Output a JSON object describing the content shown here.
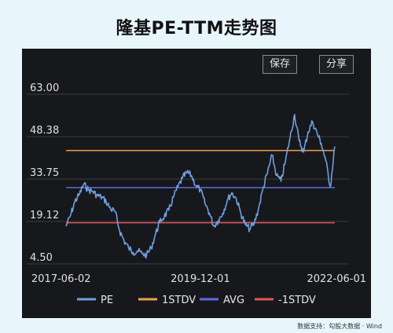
{
  "title": "隆基PE-TTM走势图",
  "buttons": {
    "save": "保存",
    "share": "分享"
  },
  "footer": "数据支持：勾股大数据 · Wind",
  "colors": {
    "pe": "#6f9fe0",
    "stdv_plus": "#e8a24a",
    "avg": "#5b6bdf",
    "stdv_minus": "#e0555a",
    "background": "#17181c",
    "grid": "#3a3b40"
  },
  "chart_data": {
    "type": "line",
    "x_axis": {
      "ticks": [
        "2017-06-02",
        "2019-12-01",
        "2022-06-01"
      ],
      "start": "2017-06-02",
      "end": "2022-06-01"
    },
    "y_axis": {
      "ticks": [
        63.0,
        48.38,
        33.75,
        19.12,
        4.5
      ],
      "tick_labels": [
        "63.00",
        "48.38",
        "33.75",
        "19.12",
        "4.50"
      ],
      "ylim": [
        4.5,
        63.0
      ]
    },
    "grid": true,
    "legend_placement": "bottom",
    "reference_lines": [
      {
        "name": "1STDV",
        "value": 43.6
      },
      {
        "name": "AVG",
        "value": 30.8
      },
      {
        "name": "-1STDV",
        "value": 18.7
      }
    ],
    "series": [
      {
        "name": "PE",
        "points": [
          [
            "2017-06-02",
            17.5
          ],
          [
            "2017-07-01",
            21.0
          ],
          [
            "2017-08-01",
            26.0
          ],
          [
            "2017-09-01",
            28.5
          ],
          [
            "2017-10-01",
            32.0
          ],
          [
            "2017-11-01",
            30.0
          ],
          [
            "2017-12-01",
            29.5
          ],
          [
            "2018-01-01",
            28.0
          ],
          [
            "2018-02-01",
            27.5
          ],
          [
            "2018-03-01",
            26.0
          ],
          [
            "2018-04-01",
            23.5
          ],
          [
            "2018-05-01",
            22.5
          ],
          [
            "2018-06-01",
            16.0
          ],
          [
            "2018-07-01",
            12.5
          ],
          [
            "2018-08-01",
            10.0
          ],
          [
            "2018-09-01",
            8.5
          ],
          [
            "2018-10-01",
            9.0
          ],
          [
            "2018-11-01",
            8.0
          ],
          [
            "2018-12-01",
            7.5
          ],
          [
            "2019-01-01",
            10.0
          ],
          [
            "2019-02-01",
            15.0
          ],
          [
            "2019-03-01",
            19.0
          ],
          [
            "2019-04-01",
            21.0
          ],
          [
            "2019-05-01",
            23.0
          ],
          [
            "2019-06-01",
            27.5
          ],
          [
            "2019-07-01",
            31.0
          ],
          [
            "2019-08-01",
            34.0
          ],
          [
            "2019-09-01",
            36.0
          ],
          [
            "2019-10-01",
            35.0
          ],
          [
            "2019-11-01",
            31.5
          ],
          [
            "2019-12-01",
            30.0
          ],
          [
            "2020-01-01",
            25.5
          ],
          [
            "2020-02-01",
            22.0
          ],
          [
            "2020-03-01",
            17.5
          ],
          [
            "2020-04-01",
            19.5
          ],
          [
            "2020-05-01",
            22.0
          ],
          [
            "2020-06-01",
            26.5
          ],
          [
            "2020-07-01",
            29.0
          ],
          [
            "2020-08-01",
            27.0
          ],
          [
            "2020-09-01",
            22.0
          ],
          [
            "2020-10-01",
            18.0
          ],
          [
            "2020-11-01",
            16.5
          ],
          [
            "2020-12-01",
            18.5
          ],
          [
            "2021-01-01",
            24.0
          ],
          [
            "2021-02-01",
            31.0
          ],
          [
            "2021-03-01",
            36.0
          ],
          [
            "2021-04-01",
            42.0
          ],
          [
            "2021-05-01",
            35.0
          ],
          [
            "2021-06-01",
            33.0
          ],
          [
            "2021-07-01",
            40.0
          ],
          [
            "2021-08-01",
            48.0
          ],
          [
            "2021-09-01",
            56.0
          ],
          [
            "2021-10-01",
            47.0
          ],
          [
            "2021-11-01",
            43.0
          ],
          [
            "2021-12-01",
            50.0
          ],
          [
            "2022-01-01",
            53.5
          ],
          [
            "2022-02-01",
            49.5
          ],
          [
            "2022-03-01",
            46.0
          ],
          [
            "2022-04-01",
            40.0
          ],
          [
            "2022-05-01",
            31.0
          ],
          [
            "2022-06-01",
            45.0
          ]
        ]
      }
    ],
    "legend": [
      "PE",
      "1STDV",
      "AVG",
      "-1STDV"
    ]
  }
}
